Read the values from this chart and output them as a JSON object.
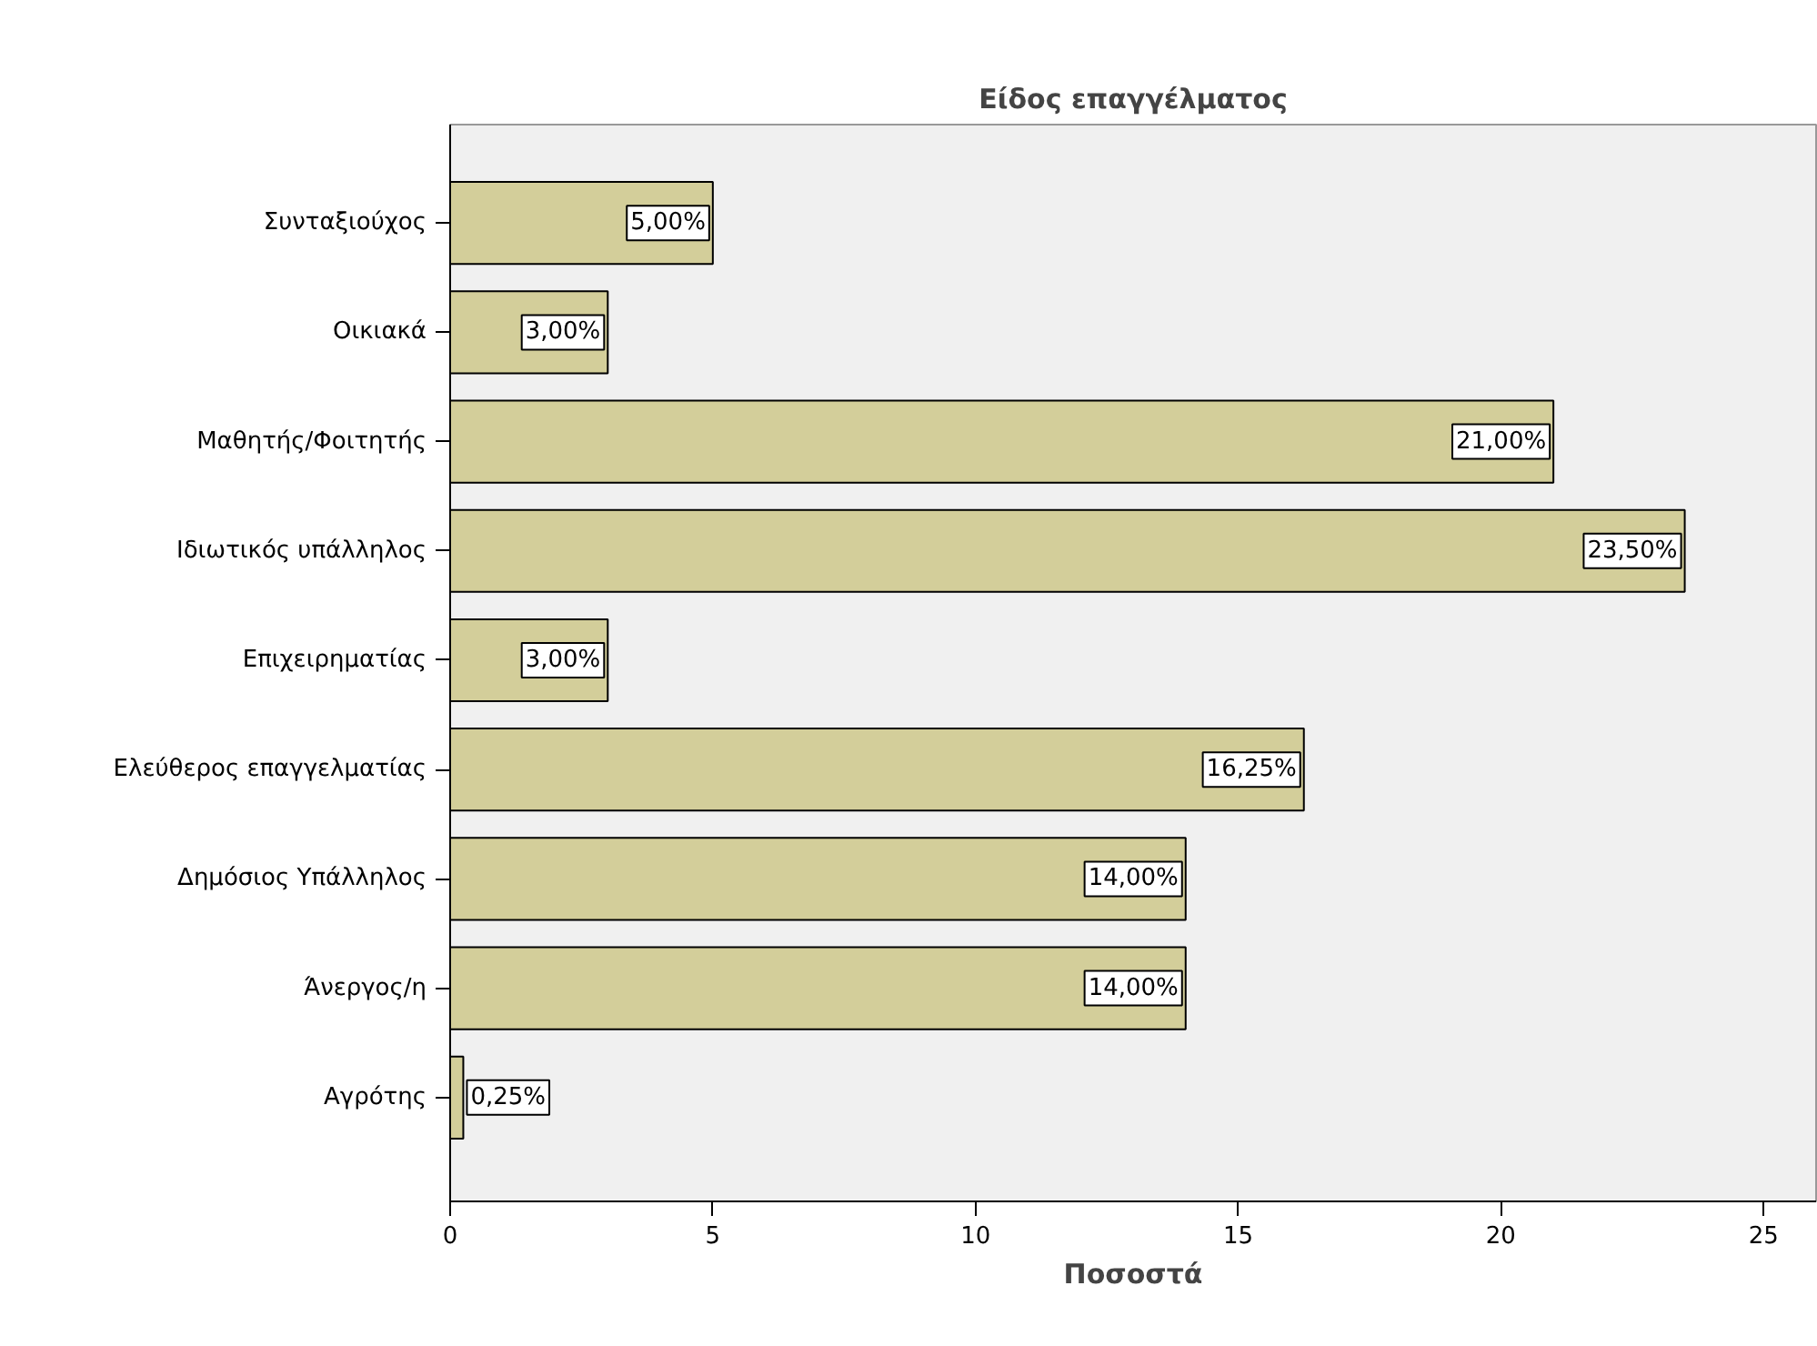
{
  "chart_data": {
    "type": "bar",
    "orientation": "horizontal",
    "title": "Είδος επαγγέλματος",
    "xlabel": "Ποσοστά",
    "categories": [
      "Συνταξιούχος",
      "Οικιακά",
      "Μαθητής/Φοιτητής",
      "Ιδιωτικός υπάλληλος",
      "Επιχειρηματίας",
      "Ελεύθερος επαγγελματίας",
      "Δημόσιος Υπάλληλος",
      "Άνεργος/η",
      "Αγρότης"
    ],
    "values": [
      5.0,
      3.0,
      21.0,
      23.5,
      3.0,
      16.25,
      14.0,
      14.0,
      0.25
    ],
    "value_labels": [
      "5,00%",
      "3,00%",
      "21,00%",
      "23,50%",
      "3,00%",
      "16,25%",
      "14,00%",
      "14,00%",
      "0,25%"
    ],
    "color": "#d3ce9a",
    "xlim": [
      0,
      26
    ],
    "xticks": [
      0,
      5,
      10,
      15,
      20,
      25
    ],
    "grid": false
  }
}
